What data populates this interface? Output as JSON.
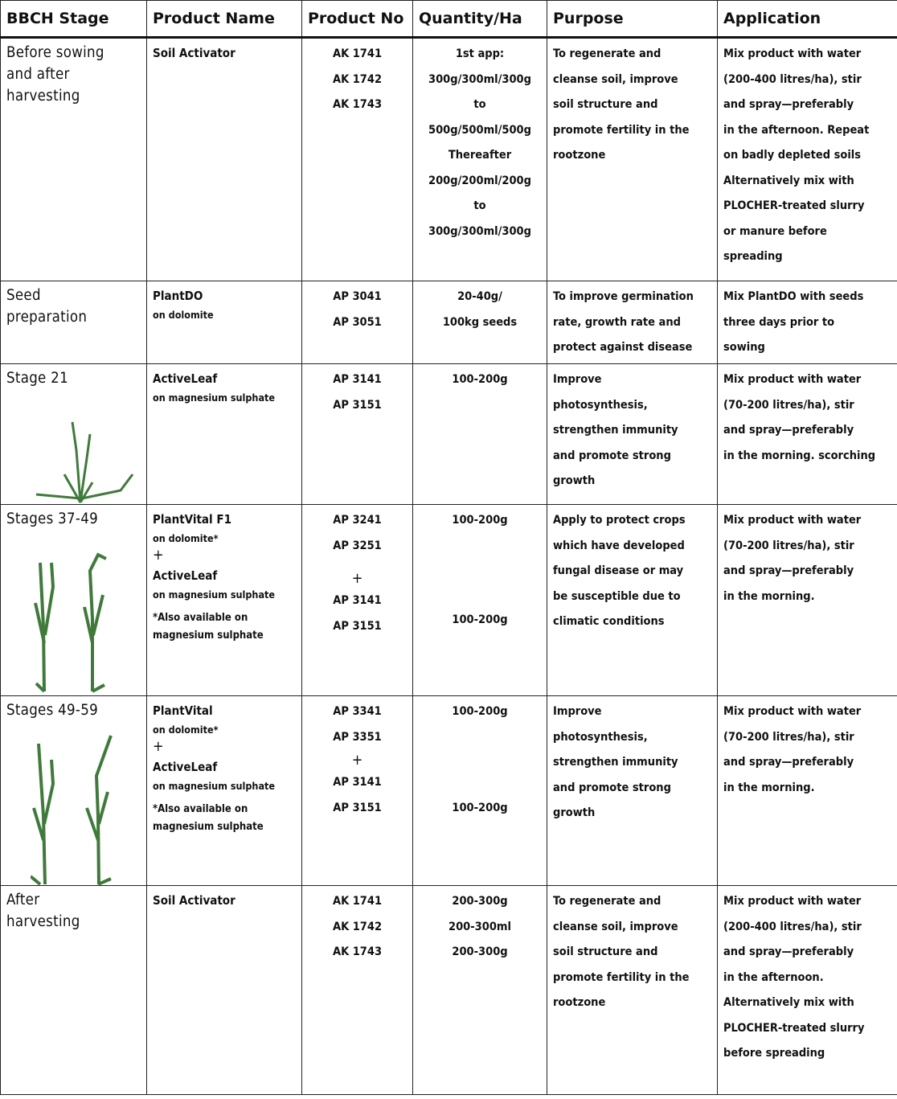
{
  "table": {
    "header": [
      "BBCH Stage",
      "Product Name",
      "Product No",
      "Quantity/Ha",
      "Purpose",
      "Application"
    ],
    "rows": [
      [
        [
          "Before sowing",
          "and after",
          "harvesting"
        ],
        [
          {
            "name": "Soil Activator"
          }
        ],
        [
          "AK 1741",
          "AK 1742",
          "AK 1743"
        ],
        [
          "1st app:",
          "300g/300ml/300g",
          "to",
          "500g/500ml/500g",
          "Thereafter",
          "200g/200ml/200g",
          "to",
          "300g/300ml/300g"
        ],
        [
          "To regenerate and",
          "cleanse soil, improve",
          "soil structure and",
          "promote fertility in the",
          "rootzone"
        ],
        [
          "Mix product with water",
          "(200-400 litres/ha), stir",
          "and spray—preferably",
          "in the afternoon. Repeat",
          "on badly depleted soils",
          "Alternatively mix with",
          "PLOCHER-treated slurry",
          "or manure before",
          "spreading"
        ]
      ],
      [
        [
          "Seed",
          "preparation"
        ],
        [
          {
            "name": "PlantDO",
            "base": "on dolomite"
          }
        ],
        [
          "AP 3041",
          "AP 3051"
        ],
        [
          "20-40g/",
          "100kg seeds"
        ],
        [
          "To improve germination",
          "rate, growth rate and",
          "protect against disease"
        ],
        [
          "Mix PlantDO with seeds",
          "three days prior to",
          "sowing"
        ]
      ],
      [
        [
          "Stage 21"
        ],
        [
          {
            "name": "ActiveLeaf",
            "base": "on magnesium sulphate"
          }
        ],
        [
          "AP 3141",
          "AP 3151"
        ],
        [
          "100-200g"
        ],
        [
          "Improve",
          "photosynthesis,",
          "strengthen immunity",
          "and promote strong",
          "growth"
        ],
        [
          "Mix product with water",
          "(70-200 litres/ha), stir",
          "and spray—preferably",
          "in the morning. scorching"
        ]
      ],
      [
        [
          "Stages 37-49"
        ],
        [
          {
            "name": "PlantVital F1",
            "base": "on dolomite*"
          },
          "+",
          {
            "name": "ActiveLeaf",
            "base": "on magnesium sulphate"
          },
          {
            "note": "*Also available on magnesium sulphate"
          }
        ],
        [
          "AP 3241",
          "AP 3251",
          "+",
          "AP 3141",
          "AP 3151"
        ],
        [
          "100-200g",
          "100-200g"
        ],
        [
          "Apply to  protect crops",
          "which have developed",
          "fungal disease or may",
          "be susceptible due to",
          "climatic conditions"
        ],
        [
          "Mix product with water",
          "(70-200 litres/ha), stir",
          "and spray—preferably",
          "in the morning."
        ]
      ],
      [
        [
          "Stages 49-59"
        ],
        [
          {
            "name": "PlantVital",
            "base": "on dolomite*"
          },
          "+",
          {
            "name": "ActiveLeaf",
            "base": "on magnesium sulphate"
          },
          {
            "note": "*Also available on magnesium sulphate"
          }
        ],
        [
          "AP 3341",
          "AP 3351",
          "+",
          "AP 3141",
          "AP 3151"
        ],
        [
          "100-200g",
          "100-200g"
        ],
        [
          "Improve",
          "photosynthesis,",
          "strengthen immunity",
          "and promote strong",
          "growth"
        ],
        [
          "Mix product with water",
          "(70-200 litres/ha), stir",
          "and spray—preferably",
          "in the morning."
        ]
      ],
      [
        [
          "After",
          "harvesting"
        ],
        [
          {
            "name": "Soil Activator"
          }
        ],
        [
          "AK 1741",
          "AK 1742",
          "AK 1743"
        ],
        [
          "200-300g",
          "200-300ml",
          "200-300g"
        ],
        [
          "To regenerate and",
          "cleanse soil, improve",
          "soil structure and",
          "promote fertility in the",
          "rootzone"
        ],
        [
          "Mix product with water",
          "(200-400 litres/ha), stir",
          "and spray—preferably",
          "in the afternoon.",
          "Alternatively mix with",
          "PLOCHER-treated slurry",
          "before spreading"
        ]
      ]
    ]
  }
}
